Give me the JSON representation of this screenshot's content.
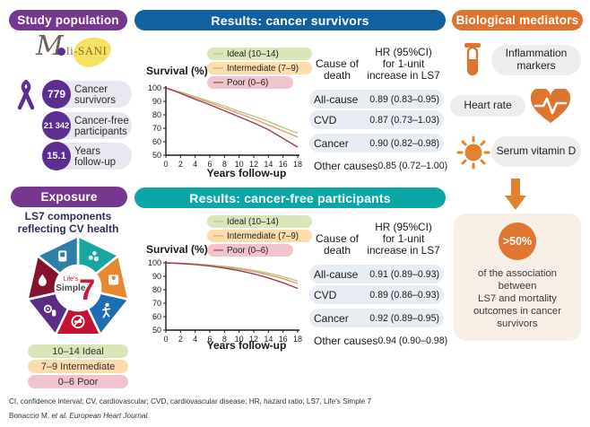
{
  "ui": {
    "dash": "—"
  },
  "study_population": {
    "header": "Study population",
    "header_color": "#76388f",
    "logo_m": "M",
    "logo_rest": "li-SANI",
    "stats": [
      {
        "value": "779",
        "label": "Cancer survivors"
      },
      {
        "value": "21 342",
        "label": "Cancer-free participants"
      },
      {
        "value": "15.1",
        "label": "Years follow-up"
      }
    ]
  },
  "exposure": {
    "header": "Exposure",
    "header_color": "#76388f",
    "subtitle": "LS7 components reflecting CV health",
    "ls7_center": {
      "top": "Life's",
      "mid": "Simple",
      "seven": "7"
    },
    "ls7_segments": [
      {
        "name": "diet",
        "color": "#17a79f"
      },
      {
        "name": "weight",
        "color": "#e8872e"
      },
      {
        "name": "physical-activity",
        "color": "#1d6db2"
      },
      {
        "name": "smoking",
        "color": "#c41230"
      },
      {
        "name": "blood-pressure",
        "color": "#5c2d87"
      },
      {
        "name": "cholesterol",
        "color": "#84142e"
      },
      {
        "name": "glucose",
        "color": "#2d7fa8"
      }
    ],
    "legend": [
      {
        "label": "10–14 Ideal",
        "color": "#d9e6ba"
      },
      {
        "label": "7–9 Intermediate",
        "color": "#fcdcab"
      },
      {
        "label": "0–6 Poor",
        "color": "#f2c3ca"
      }
    ]
  },
  "survivors": {
    "header": "Results: cancer survivors",
    "header_color": "#11609f",
    "col1": "Cause of\ndeath",
    "col2": "HR (95%CI)\nfor 1-unit\nincrease in LS7",
    "rows": [
      {
        "cause": "All-cause",
        "hr": "0.89 (0.83–0.95)"
      },
      {
        "cause": "CVD",
        "hr": "0.87 (0.73–1.03)"
      },
      {
        "cause": "Cancer",
        "hr": "0.90 (0.82–0.98)"
      },
      {
        "cause": "Other causes",
        "hr": "0.85 (0.72–1.00)"
      }
    ]
  },
  "cancer_free": {
    "header": "Results: cancer-free participants",
    "header_color": "#0ba7a7",
    "col1": "Cause of\ndeath",
    "col2": "HR (95%CI)\nfor 1-unit\nincrease in LS7",
    "rows": [
      {
        "cause": "All-cause",
        "hr": "0.91 (0.89–0.93)"
      },
      {
        "cause": "CVD",
        "hr": "0.89 (0.86–0.93)"
      },
      {
        "cause": "Cancer",
        "hr": "0.92 (0.89–0.95)"
      },
      {
        "cause": "Other causes",
        "hr": "0.94 (0.90–0.98)"
      }
    ]
  },
  "mediators": {
    "header": "Biological mediators",
    "header_color": "#dd7430",
    "items": [
      {
        "label": "Inflammation markers"
      },
      {
        "label": "Heart rate"
      },
      {
        "label": "Serum vitamin D"
      }
    ],
    "finding": {
      "badge": ">50%",
      "text": "of the association\nbetween\nLS7 and mortality\noutcomes in cancer\nsurvivors"
    }
  },
  "footer": {
    "abbreviations": "CI, confidence interval; CV, cardiovascular; CVD, cardiovascular disease; HR, hazard ratio; LS7, Life's Simple 7",
    "citation_normal": "Bonaccio M, ",
    "citation_italic": "et al. European Heart Journal."
  },
  "chart_data": [
    {
      "type": "line",
      "title": "Results: cancer survivors",
      "xlabel": "Years follow-up",
      "ylabel": "Survival (%)",
      "xlim": [
        0,
        18
      ],
      "ylim": [
        50,
        100
      ],
      "xticks": [
        0,
        2,
        4,
        6,
        8,
        10,
        12,
        14,
        16,
        18
      ],
      "yticks": [
        50,
        60,
        70,
        80,
        90,
        100
      ],
      "grid": false,
      "legend_position": "top",
      "x": [
        0,
        2,
        4,
        6,
        8,
        10,
        12,
        14,
        16,
        18
      ],
      "series": [
        {
          "name": "Ideal (10–14)",
          "color": "#b2c78c",
          "pill": "#d9e6ba",
          "values": [
            100,
            97,
            93.5,
            90,
            86.5,
            82.5,
            79,
            75,
            70.5,
            66.5
          ]
        },
        {
          "name": "Intermediate (7–9)",
          "color": "#de9f68",
          "pill": "#fcdcab",
          "values": [
            100,
            96.5,
            92.5,
            89,
            85,
            81,
            77,
            72.5,
            68,
            63.5
          ]
        },
        {
          "name": "Poor (0–6)",
          "color": "#964051",
          "pill": "#f2c3ca",
          "values": [
            100,
            96,
            91.5,
            87.5,
            83,
            78.5,
            74,
            69,
            62.5,
            56
          ]
        }
      ]
    },
    {
      "type": "line",
      "title": "Results: cancer-free participants",
      "xlabel": "Years follow-up",
      "ylabel": "Survival (%)",
      "xlim": [
        0,
        18
      ],
      "ylim": [
        50,
        100
      ],
      "xticks": [
        0,
        2,
        4,
        6,
        8,
        10,
        12,
        14,
        16,
        18
      ],
      "yticks": [
        50,
        60,
        70,
        80,
        90,
        100
      ],
      "grid": false,
      "legend_position": "top",
      "x": [
        0,
        2,
        4,
        6,
        8,
        10,
        12,
        14,
        16,
        18
      ],
      "series": [
        {
          "name": "Ideal (10–14)",
          "color": "#b2c78c",
          "pill": "#d9e6ba",
          "values": [
            100,
            99.7,
            99.2,
            98.4,
            97.4,
            96.1,
            94.4,
            92.3,
            89.7,
            86.5
          ]
        },
        {
          "name": "Intermediate (7–9)",
          "color": "#de9f68",
          "pill": "#fcdcab",
          "values": [
            100,
            99.6,
            99,
            98.1,
            96.9,
            95.4,
            93.5,
            91.1,
            88.2,
            84.7
          ]
        },
        {
          "name": "Poor (0–6)",
          "color": "#964051",
          "pill": "#f2c3ca",
          "values": [
            100,
            99.5,
            98.7,
            97.6,
            96.1,
            94.2,
            91.8,
            88.8,
            85.2,
            81
          ]
        }
      ]
    }
  ]
}
